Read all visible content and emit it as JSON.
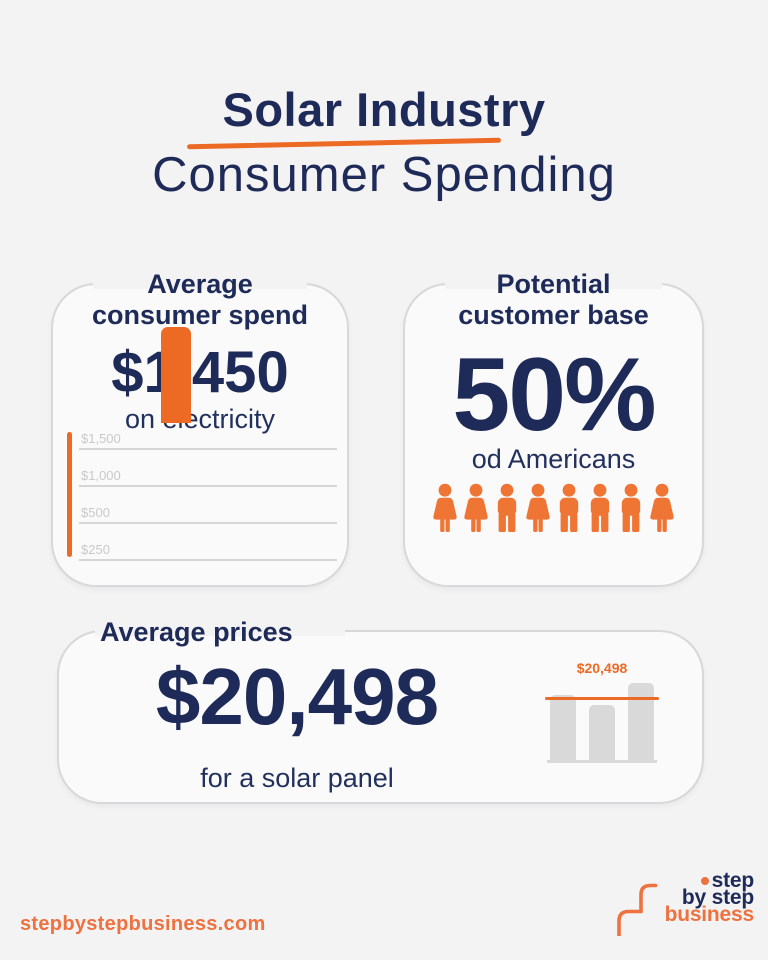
{
  "header": {
    "title_line1": "Solar Industry",
    "title_line2": "Consumer Spending"
  },
  "cards": {
    "spend": {
      "heading_line1": "Average",
      "heading_line2": "consumer spend",
      "value": "$1,450",
      "caption": "on electricity"
    },
    "customers": {
      "heading_line1": "Potential",
      "heading_line2": "customer base",
      "value": "50%",
      "caption": "od Americans",
      "people": [
        "woman",
        "woman",
        "man",
        "woman",
        "man",
        "man",
        "man",
        "woman"
      ]
    },
    "prices": {
      "heading": "Average prices",
      "value": "$20,498",
      "caption": "for a solar panel"
    }
  },
  "chart_data": [
    {
      "type": "bar",
      "title": "Average consumer spend on electricity",
      "categories": [
        "Average consumer spend"
      ],
      "values": [
        1450
      ],
      "ytick_labels": [
        "$1,500",
        "$1,000",
        "$500",
        "$250"
      ],
      "ylim": [
        0,
        1500
      ],
      "grid": true,
      "bar_color": "#ED6A25",
      "axis_color": "#ED6A25",
      "notes": "single orange bar topping out just below the $1,500 gridline"
    },
    {
      "type": "bar",
      "title": "Average prices for a solar panel",
      "label": "$20,498",
      "reference_value": 20498,
      "values_relative": [
        0.84,
        0.71,
        1.0
      ],
      "bar_color": "#D9D9D9",
      "reference_line_color": "#ED6A25",
      "notes": "three decorative gray bars crossed by an orange reference line at $20,498"
    }
  ],
  "footer": {
    "website": "stepbystepbusiness.com",
    "logo": {
      "line1": "step",
      "line2": "by step",
      "line3": "business"
    }
  },
  "colors": {
    "navy": "#1E2A58",
    "orange": "#ED6A25",
    "orange_light": "#EE7140",
    "people_orange": "#EE7534",
    "background": "#F3F3F4",
    "card_background": "#FAFAFA",
    "card_border": "#D8D8D8",
    "gridline": "#D6D6D6",
    "tick_label": "#C9C9C9",
    "gray_bar": "#D9D9D9"
  }
}
